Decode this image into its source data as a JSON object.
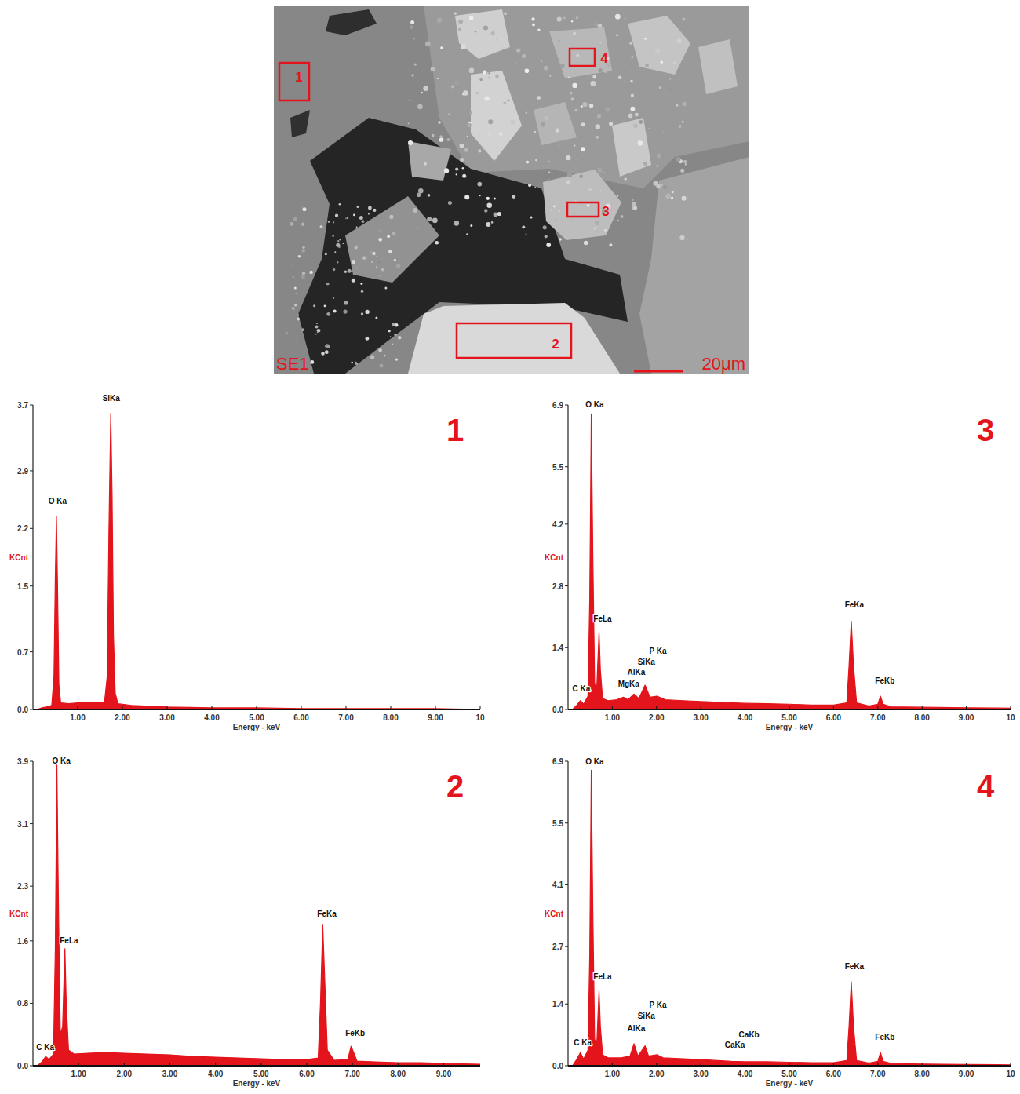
{
  "image": {
    "label": "SE1",
    "scale_bar": "20μm",
    "regions": [
      "1",
      "2",
      "3",
      "4"
    ]
  },
  "chart_data": [
    {
      "type": "area",
      "title": "1",
      "x_label": "Energy - keV",
      "y_label": "KCnt",
      "color": "#e3141b",
      "grid": false,
      "xlim": [
        0,
        10
      ],
      "ylim": [
        0,
        3.7
      ],
      "xticks": [
        {
          "value": 1,
          "label": "1.00"
        },
        {
          "value": 2,
          "label": "2.00"
        },
        {
          "value": 3,
          "label": "3.00"
        },
        {
          "value": 4,
          "label": "4.00"
        },
        {
          "value": 5,
          "label": "5.00"
        },
        {
          "value": 6,
          "label": "6.00"
        },
        {
          "value": 7,
          "label": "7.00"
        },
        {
          "value": 8,
          "label": "8.00"
        },
        {
          "value": 9,
          "label": "9.00"
        },
        {
          "value": 10,
          "label": "10"
        }
      ],
      "yticks": [
        {
          "value": 0,
          "label": "0.0"
        },
        0.7,
        1.5,
        2.2,
        2.9,
        3.7
      ],
      "x": [
        0.1,
        0.2,
        0.3,
        0.42,
        0.47,
        0.5,
        0.525,
        0.55,
        0.58,
        0.62,
        0.8,
        1.0,
        1.2,
        1.4,
        1.6,
        1.66,
        1.7,
        1.74,
        1.77,
        1.8,
        1.84,
        1.9,
        2.2,
        2.6,
        3.0,
        4.0,
        5.0,
        6.0,
        7.0,
        8.0,
        9.0,
        10.0
      ],
      "values": [
        0,
        0.02,
        0.03,
        0.05,
        0.4,
        1.6,
        2.35,
        1.5,
        0.3,
        0.08,
        0.07,
        0.08,
        0.08,
        0.08,
        0.09,
        0.4,
        2.2,
        3.6,
        2.6,
        0.9,
        0.2,
        0.07,
        0.05,
        0.04,
        0.03,
        0.02,
        0.02,
        0.01,
        0.01,
        0.01,
        0.01,
        0
      ],
      "annotations": [
        {
          "text": "O Ka",
          "x": 0.55,
          "y": 2.5
        },
        {
          "text": "SiKa",
          "x": 1.75,
          "y": 3.75
        }
      ]
    },
    {
      "type": "area",
      "title": "2",
      "x_label": "Energy - keV",
      "y_label": "KCnt",
      "color": "#e3141b",
      "grid": false,
      "xlim": [
        0,
        9.8
      ],
      "ylim": [
        0,
        3.9
      ],
      "xticks": [
        {
          "value": 1,
          "label": "1.00"
        },
        {
          "value": 2,
          "label": "2.00"
        },
        {
          "value": 3,
          "label": "3.00"
        },
        {
          "value": 4,
          "label": "4.00"
        },
        {
          "value": 5,
          "label": "5.00"
        },
        {
          "value": 6,
          "label": "6.00"
        },
        {
          "value": 7,
          "label": "7.00"
        },
        {
          "value": 8,
          "label": "8.00"
        },
        {
          "value": 9,
          "label": "9.00"
        }
      ],
      "yticks": [
        {
          "value": 0,
          "label": "0.0"
        },
        0.8,
        1.6,
        2.3,
        3.1,
        3.9
      ],
      "x": [
        0.1,
        0.2,
        0.28,
        0.35,
        0.45,
        0.49,
        0.525,
        0.56,
        0.6,
        0.65,
        0.7,
        0.73,
        0.78,
        0.9,
        1.2,
        1.6,
        2.0,
        2.5,
        3.0,
        3.5,
        4.0,
        4.5,
        5.0,
        5.5,
        6.0,
        6.25,
        6.3,
        6.35,
        6.4,
        6.45,
        6.6,
        6.9,
        6.97,
        7.02,
        7.1,
        7.5,
        8.0,
        8.5,
        9.0,
        9.8
      ],
      "values": [
        0,
        0.05,
        0.12,
        0.08,
        0.15,
        1.5,
        3.85,
        2.0,
        0.4,
        0.5,
        1.5,
        0.8,
        0.2,
        0.15,
        0.16,
        0.17,
        0.16,
        0.15,
        0.14,
        0.12,
        0.11,
        0.1,
        0.09,
        0.08,
        0.08,
        0.1,
        0.8,
        1.8,
        1.0,
        0.2,
        0.07,
        0.08,
        0.25,
        0.18,
        0.06,
        0.05,
        0.04,
        0.04,
        0.03,
        0.02
      ],
      "annotations": [
        {
          "text": "O Ka",
          "x": 0.62,
          "y": 3.87
        },
        {
          "text": "FeLa",
          "x": 0.79,
          "y": 1.57
        },
        {
          "text": "C Ka",
          "x": 0.27,
          "y": 0.2
        },
        {
          "text": "FeKa",
          "x": 6.44,
          "y": 1.91
        },
        {
          "text": "FeKb",
          "x": 7.06,
          "y": 0.38
        }
      ]
    },
    {
      "type": "area",
      "title": "3",
      "x_label": "Energy - keV",
      "y_label": "KCnt",
      "color": "#e3141b",
      "grid": false,
      "xlim": [
        0,
        10
      ],
      "ylim": [
        0,
        6.9
      ],
      "xticks": [
        {
          "value": 1,
          "label": "1.00"
        },
        {
          "value": 2,
          "label": "2.00"
        },
        {
          "value": 3,
          "label": "3.00"
        },
        {
          "value": 4,
          "label": "4.00"
        },
        {
          "value": 5,
          "label": "5.00"
        },
        {
          "value": 6,
          "label": "6.00"
        },
        {
          "value": 7,
          "label": "7.00"
        },
        {
          "value": 8,
          "label": "8.00"
        },
        {
          "value": 9,
          "label": "9.00"
        },
        {
          "value": 10,
          "label": "10"
        }
      ],
      "yticks": [
        {
          "value": 0,
          "label": "0.0"
        },
        1.4,
        2.8,
        4.2,
        5.5,
        6.9
      ],
      "x": [
        0.1,
        0.2,
        0.28,
        0.35,
        0.45,
        0.49,
        0.525,
        0.56,
        0.6,
        0.65,
        0.7,
        0.73,
        0.78,
        0.9,
        1.1,
        1.25,
        1.35,
        1.49,
        1.6,
        1.74,
        1.85,
        2.01,
        2.2,
        2.6,
        3.0,
        3.5,
        4.0,
        4.5,
        5.0,
        5.5,
        6.0,
        6.3,
        6.35,
        6.4,
        6.45,
        6.52,
        6.8,
        7.0,
        7.06,
        7.12,
        7.3,
        8.0,
        9.0,
        10.0
      ],
      "values": [
        0,
        0.1,
        0.2,
        0.12,
        0.3,
        2.5,
        6.7,
        3.5,
        0.6,
        0.5,
        1.75,
        0.9,
        0.25,
        0.2,
        0.22,
        0.28,
        0.22,
        0.35,
        0.25,
        0.55,
        0.28,
        0.3,
        0.22,
        0.2,
        0.18,
        0.16,
        0.14,
        0.13,
        0.12,
        0.1,
        0.1,
        0.15,
        1.0,
        2.0,
        1.0,
        0.15,
        0.08,
        0.12,
        0.3,
        0.12,
        0.06,
        0.05,
        0.04,
        0.03
      ],
      "annotations": [
        {
          "text": "O Ka",
          "x": 0.6,
          "y": 6.85
        },
        {
          "text": "FeLa",
          "x": 0.78,
          "y": 2.0
        },
        {
          "text": "P Ka",
          "x": 2.03,
          "y": 1.26
        },
        {
          "text": "SiKa",
          "x": 1.77,
          "y": 1.01
        },
        {
          "text": "AlKa",
          "x": 1.54,
          "y": 0.78
        },
        {
          "text": "MgKa",
          "x": 1.37,
          "y": 0.52
        },
        {
          "text": "C Ka",
          "x": 0.3,
          "y": 0.41
        },
        {
          "text": "FeKa",
          "x": 6.47,
          "y": 2.31
        },
        {
          "text": "FeKb",
          "x": 7.16,
          "y": 0.59
        }
      ]
    },
    {
      "type": "area",
      "title": "4",
      "x_label": "Energy - keV",
      "y_label": "KCnt",
      "color": "#e3141b",
      "grid": false,
      "xlim": [
        0,
        10
      ],
      "ylim": [
        0,
        6.9
      ],
      "xticks": [
        {
          "value": 1,
          "label": "1.00"
        },
        {
          "value": 2,
          "label": "2.00"
        },
        {
          "value": 3,
          "label": "3.00"
        },
        {
          "value": 4,
          "label": "4.00"
        },
        {
          "value": 5,
          "label": "5.00"
        },
        {
          "value": 6,
          "label": "6.00"
        },
        {
          "value": 7,
          "label": "7.00"
        },
        {
          "value": 8,
          "label": "8.00"
        },
        {
          "value": 9,
          "label": "9.00"
        },
        {
          "value": 10,
          "label": "10"
        }
      ],
      "yticks": [
        {
          "value": 0,
          "label": "0.0"
        },
        1.4,
        2.7,
        4.1,
        5.5,
        6.9
      ],
      "x": [
        0.1,
        0.2,
        0.28,
        0.35,
        0.45,
        0.49,
        0.525,
        0.56,
        0.6,
        0.65,
        0.7,
        0.73,
        0.78,
        0.9,
        1.2,
        1.4,
        1.49,
        1.58,
        1.74,
        1.82,
        2.01,
        2.15,
        2.6,
        3.0,
        3.69,
        4.01,
        4.5,
        5.0,
        5.5,
        6.0,
        6.3,
        6.35,
        6.4,
        6.45,
        6.52,
        6.8,
        7.0,
        7.06,
        7.12,
        7.3,
        8.0,
        9.0,
        10.0
      ],
      "values": [
        0,
        0.15,
        0.3,
        0.15,
        0.35,
        2.5,
        6.7,
        3.5,
        0.6,
        0.5,
        1.7,
        0.9,
        0.25,
        0.18,
        0.18,
        0.22,
        0.5,
        0.22,
        0.45,
        0.22,
        0.25,
        0.18,
        0.16,
        0.14,
        0.1,
        0.09,
        0.09,
        0.08,
        0.07,
        0.07,
        0.12,
        0.9,
        1.9,
        0.9,
        0.12,
        0.06,
        0.1,
        0.3,
        0.1,
        0.05,
        0.04,
        0.03,
        0.02
      ],
      "annotations": [
        {
          "text": "O Ka",
          "x": 0.6,
          "y": 6.83
        },
        {
          "text": "FeLa",
          "x": 0.78,
          "y": 1.95
        },
        {
          "text": "P Ka",
          "x": 2.03,
          "y": 1.31
        },
        {
          "text": "SiKa",
          "x": 1.77,
          "y": 1.06
        },
        {
          "text": "AlKa",
          "x": 1.54,
          "y": 0.78
        },
        {
          "text": "C Ka",
          "x": 0.33,
          "y": 0.46
        },
        {
          "text": "CaKb",
          "x": 4.09,
          "y": 0.64
        },
        {
          "text": "CaKa",
          "x": 3.77,
          "y": 0.41
        },
        {
          "text": "FeKa",
          "x": 6.47,
          "y": 2.19
        },
        {
          "text": "FeKb",
          "x": 7.16,
          "y": 0.58
        }
      ]
    }
  ]
}
